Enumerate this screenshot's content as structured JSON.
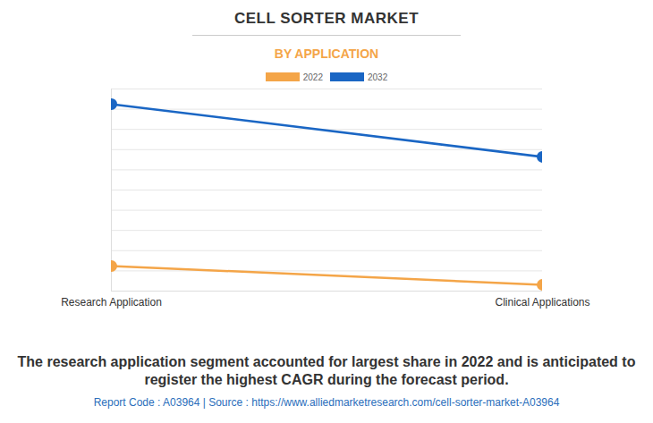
{
  "chart_data": {
    "type": "line",
    "title": "CELL SORTER MARKET",
    "subtitle": "BY APPLICATION",
    "caption": "The research application segment accounted for largest share in 2022 and is anticipated to register the highest CAGR during the forecast period.",
    "footer": "Report Code : A03964  |  Source : https://www.alliedmarketresearch.com/cell-sorter-market-A03964",
    "categories": [
      "Research Application",
      "Clinical Applications"
    ],
    "series": [
      {
        "name": "2022",
        "color": "#f4a548",
        "values": [
          1.24,
          0.31
        ]
      },
      {
        "name": "2032",
        "color": "#1a66c4",
        "values": [
          9.25,
          6.64
        ]
      }
    ],
    "ylim": [
      0,
      10
    ],
    "yticks": [
      0,
      1,
      2,
      3,
      4,
      5,
      6,
      7,
      8,
      9,
      10
    ],
    "grid": true,
    "tick_labels": "x",
    "marker": "circle",
    "legend": "top"
  }
}
